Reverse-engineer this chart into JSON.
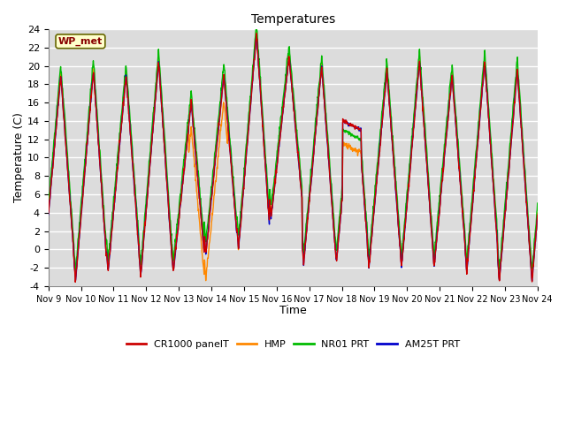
{
  "title": "Temperatures",
  "xlabel": "Time",
  "ylabel": "Temperature (C)",
  "ylim": [
    -4,
    24
  ],
  "yticks": [
    -4,
    -2,
    0,
    2,
    4,
    6,
    8,
    10,
    12,
    14,
    16,
    18,
    20,
    22,
    24
  ],
  "xtick_labels": [
    "Nov 9",
    "Nov 10",
    "Nov 11",
    "Nov 12",
    "Nov 13",
    "Nov 14",
    "Nov 15",
    "Nov 16",
    "Nov 17",
    "Nov 18",
    "Nov 19",
    "Nov 20",
    "Nov 21",
    "Nov 22",
    "Nov 23",
    "Nov 24"
  ],
  "station_label": "WP_met",
  "legend_entries": [
    "CR1000 panelT",
    "HMP",
    "NR01 PRT",
    "AM25T PRT"
  ],
  "colors": {
    "CR1000": "#cc0000",
    "HMP": "#ff8800",
    "NR01": "#00bb00",
    "AM25T": "#0000cc"
  },
  "plot_bg": "#dcdcdc",
  "fig_bg": "#ffffff",
  "line_width": 1.0,
  "station_bg": "#ffffcc",
  "station_border": "#880000"
}
